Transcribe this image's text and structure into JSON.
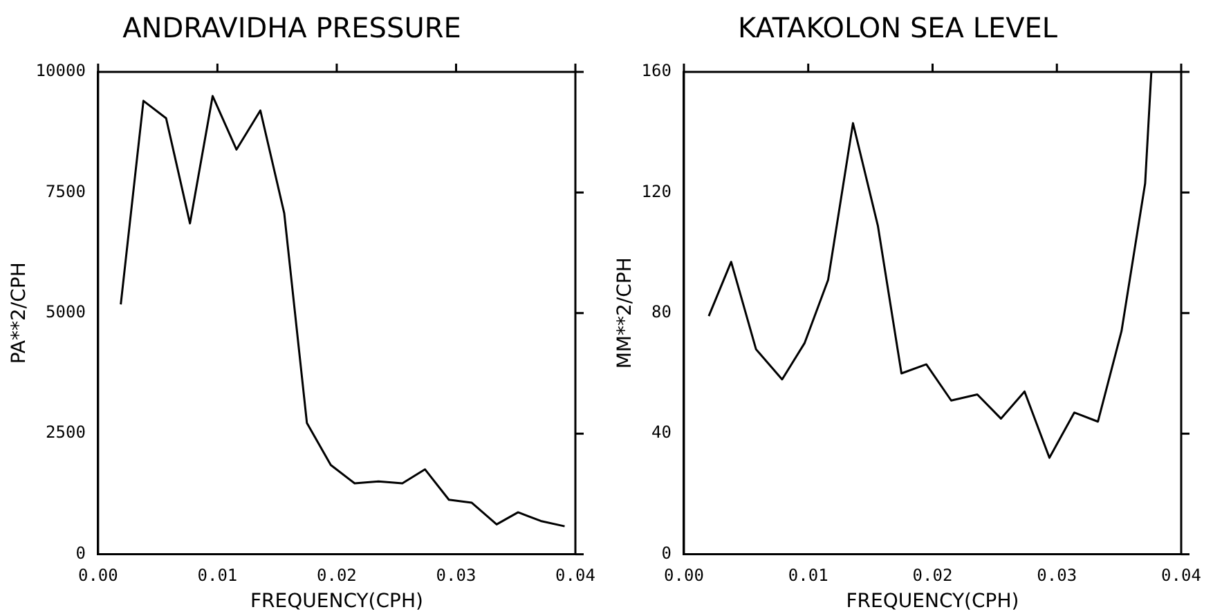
{
  "chart_data": [
    {
      "type": "line",
      "title": "ANDRAVIDHA PRESSURE",
      "xlabel": "FREQUENCY(CPH)",
      "ylabel": "PA**2/CPH",
      "color": "#000000",
      "x": [
        0.0019,
        0.0038,
        0.0057,
        0.0077,
        0.0096,
        0.0116,
        0.0136,
        0.0156,
        0.0175,
        0.0195,
        0.0215,
        0.0235,
        0.0255,
        0.0274,
        0.0294,
        0.0313,
        0.0334,
        0.0352,
        0.0371,
        0.0391
      ],
      "values": [
        5180,
        9400,
        9040,
        6860,
        9500,
        8390,
        9200,
        7070,
        2720,
        1850,
        1470,
        1510,
        1470,
        1760,
        1130,
        1070,
        620,
        870,
        690,
        580
      ],
      "xlim": [
        0,
        0.04
      ],
      "xticks": [
        {
          "value": 0,
          "label": "0.00"
        },
        0.01,
        0.02,
        0.03,
        0.04
      ],
      "ylim": [
        0,
        10000
      ],
      "yticks": [
        0,
        2500,
        5000,
        7500,
        10000
      ]
    },
    {
      "type": "line",
      "title": "KATAKOLON SEA LEVEL",
      "xlabel": "FREQUENCY(CPH)",
      "ylabel": "MM**2/CPH",
      "color": "#000000",
      "x": [
        0.002,
        0.0038,
        0.0058,
        0.0079,
        0.0097,
        0.0116,
        0.0136,
        0.0156,
        0.0175,
        0.0195,
        0.0215,
        0.0236,
        0.0255,
        0.0274,
        0.0294,
        0.0314,
        0.0333,
        0.0352,
        0.0371,
        0.0376
      ],
      "values": [
        79,
        97,
        68,
        58,
        70,
        91,
        143,
        109,
        60,
        63,
        51,
        53,
        45,
        54,
        32,
        47,
        44,
        74,
        123,
        160
      ],
      "xlim": [
        0,
        0.04
      ],
      "xticks": [
        {
          "value": 0,
          "label": "0.00"
        },
        0.01,
        0.02,
        0.03,
        0.04
      ],
      "ylim": [
        0,
        160
      ],
      "yticks": [
        0,
        40,
        80,
        120,
        160
      ]
    }
  ]
}
